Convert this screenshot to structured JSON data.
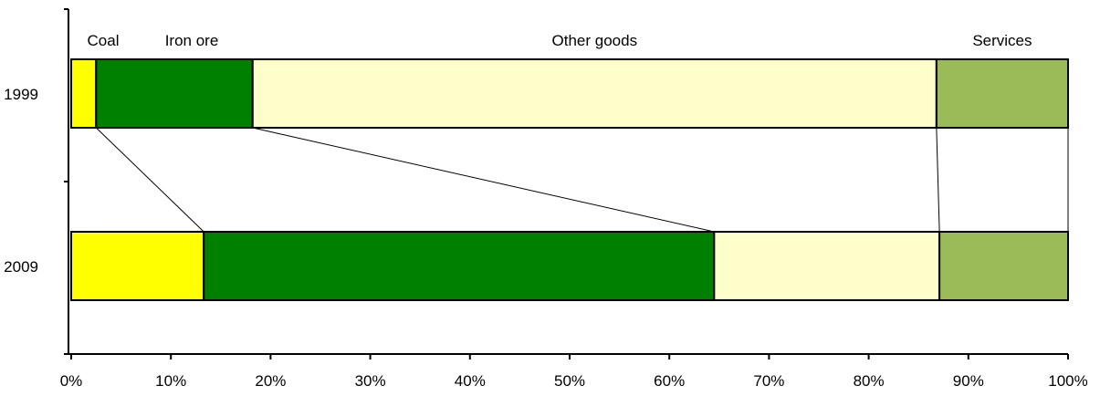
{
  "chart_data": {
    "type": "bar",
    "orientation": "horizontal",
    "stacked": true,
    "normalized": true,
    "categories": [
      "1999",
      "2009"
    ],
    "series": [
      {
        "name": "Coal",
        "color": "#ffff00",
        "values": [
          2.5,
          13.3
        ]
      },
      {
        "name": "Iron ore",
        "color": "#008000",
        "values": [
          15.7,
          51.2
        ]
      },
      {
        "name": "Other goods",
        "color": "#ffffcc",
        "values": [
          68.6,
          22.6
        ]
      },
      {
        "name": "Services",
        "color": "#9bbb59",
        "values": [
          13.2,
          12.9
        ]
      }
    ],
    "xlim": [
      0,
      100
    ],
    "x_ticks": [
      "0%",
      "10%",
      "20%",
      "30%",
      "40%",
      "50%",
      "60%",
      "70%",
      "80%",
      "90%",
      "100%"
    ],
    "connector_lines": true,
    "legend": "labels above top bar",
    "grid": false,
    "title": "",
    "xlabel": "",
    "ylabel": ""
  }
}
